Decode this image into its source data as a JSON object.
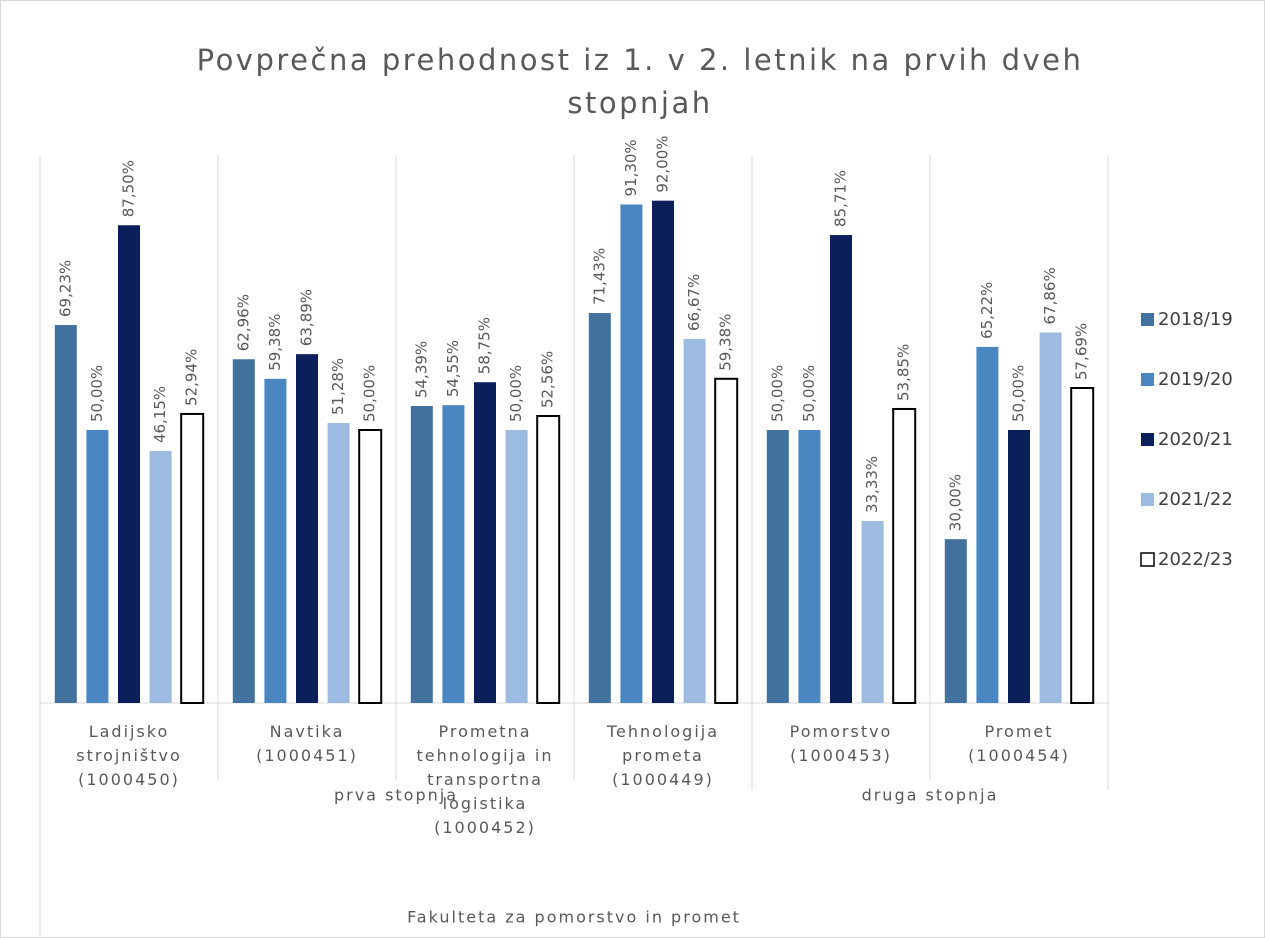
{
  "chart_data": {
    "type": "bar",
    "title": "Povprečna prehodnost iz 1. v 2. letnik na prvih dveh stopnjah",
    "top_group": "Fakulteta za pomorstvo in promet",
    "groups": [
      {
        "label": "prva stopnja",
        "categories": [
          "Ladijsko strojništvo (1000450)",
          "Navtika (1000451)",
          "Prometna tehnologija in transportna logistika (1000452)",
          "Tehnologija prometa (1000449)"
        ]
      },
      {
        "label": "druga stopnja",
        "categories": [
          "Pomorstvo (1000453)",
          "Promet (1000454)"
        ]
      }
    ],
    "series": [
      {
        "name": "2018/19",
        "color": "#41719c",
        "values": [
          69.23,
          62.96,
          54.39,
          71.43,
          50,
          30
        ],
        "value_labels": [
          "69,23%",
          "62,96%",
          "54,39%",
          "71,43%",
          "50,00%",
          "30,00%"
        ]
      },
      {
        "name": "2019/20",
        "color": "#4a86c0",
        "values": [
          50,
          59.38,
          54.55,
          91.3,
          50,
          65.22
        ],
        "value_labels": [
          "50,00%",
          "59,38%",
          "54,55%",
          "91,30%",
          "50,00%",
          "65,22%"
        ]
      },
      {
        "name": "2020/21",
        "color": "#0b1f5b",
        "values": [
          87.5,
          63.89,
          58.75,
          92,
          85.71,
          50
        ],
        "value_labels": [
          "87,50%",
          "63,89%",
          "58,75%",
          "92,00%",
          "85,71%",
          "50,00%"
        ]
      },
      {
        "name": "2021/22",
        "color": "#9dbbe1",
        "values": [
          46.15,
          51.28,
          50,
          66.67,
          33.33,
          67.86
        ],
        "value_labels": [
          "46,15%",
          "51,28%",
          "50,00%",
          "66,67%",
          "33,33%",
          "67,86%"
        ]
      },
      {
        "name": "2022/23",
        "color": "#ffffff",
        "values": [
          52.94,
          50,
          52.56,
          59.38,
          53.85,
          57.69
        ],
        "value_labels": [
          "52,94%",
          "50,00%",
          "52,56%",
          "59,38%",
          "53,85%",
          "57,69%"
        ]
      }
    ],
    "ylim": [
      0,
      100
    ],
    "legend": "right"
  }
}
